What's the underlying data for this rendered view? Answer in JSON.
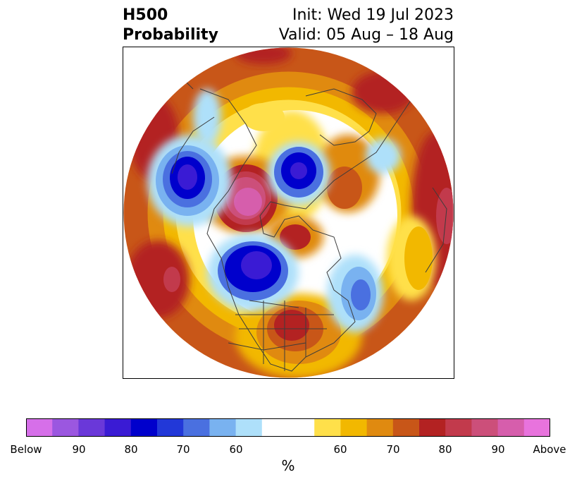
{
  "header": {
    "title_line1": "H500",
    "title_line2": "Probability",
    "init": "Init: Wed 19 Jul 2023",
    "valid": "Valid: 05 Aug – 18 Aug"
  },
  "colorbar": {
    "colors": [
      "#d66fe9",
      "#9b57e0",
      "#6a38d9",
      "#3a1bd4",
      "#0000cc",
      "#2238d8",
      "#4a70e0",
      "#79b2f0",
      "#aee0fa",
      "#ffffff",
      "#ffe04a",
      "#f2b800",
      "#e08a10",
      "#c85618",
      "#b32222",
      "#c23a4c",
      "#cc4f7a",
      "#d65eac",
      "#e873dd"
    ],
    "tick_labels": [
      "Below",
      "90",
      "80",
      "70",
      "60",
      "60",
      "70",
      "80",
      "90",
      "Above"
    ],
    "unit": "%"
  },
  "map": {
    "projection": "north-polar-stereographic",
    "variable": "500 hPa geopotential height anomaly probability"
  }
}
